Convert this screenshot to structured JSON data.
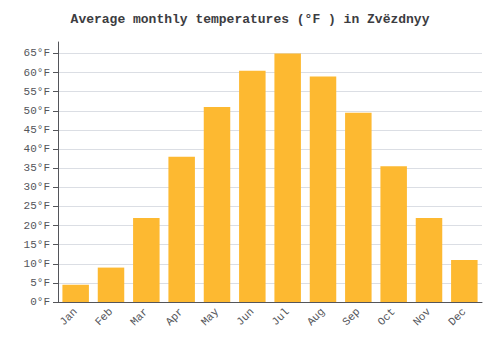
{
  "chart_data": {
    "type": "bar",
    "title": "Average monthly temperatures (°F ) in Zvëzdnyy",
    "categories": [
      "Jan",
      "Feb",
      "Mar",
      "Apr",
      "May",
      "Jun",
      "Jul",
      "Aug",
      "Sep",
      "Oct",
      "Nov",
      "Dec"
    ],
    "values": [
      4.5,
      9.0,
      22.0,
      38.0,
      51.0,
      60.5,
      65.0,
      59.0,
      49.5,
      35.5,
      22.0,
      11.0
    ],
    "color": "#FDB931",
    "ylim": [
      0,
      68
    ],
    "yticks": [
      {
        "value": 0,
        "label": "0°F"
      },
      {
        "value": 5,
        "label": "5°F"
      },
      {
        "value": 10,
        "label": "10°F"
      },
      {
        "value": 15,
        "label": "15°F"
      },
      {
        "value": 20,
        "label": "20°F"
      },
      {
        "value": 25,
        "label": "25°F"
      },
      {
        "value": 30,
        "label": "30°F"
      },
      {
        "value": 35,
        "label": "35°F"
      },
      {
        "value": 40,
        "label": "40°F"
      },
      {
        "value": 45,
        "label": "45°F"
      },
      {
        "value": 50,
        "label": "50°F"
      },
      {
        "value": 55,
        "label": "55°F"
      },
      {
        "value": 60,
        "label": "60°F"
      },
      {
        "value": 65,
        "label": "65°F"
      }
    ],
    "grid": true
  }
}
